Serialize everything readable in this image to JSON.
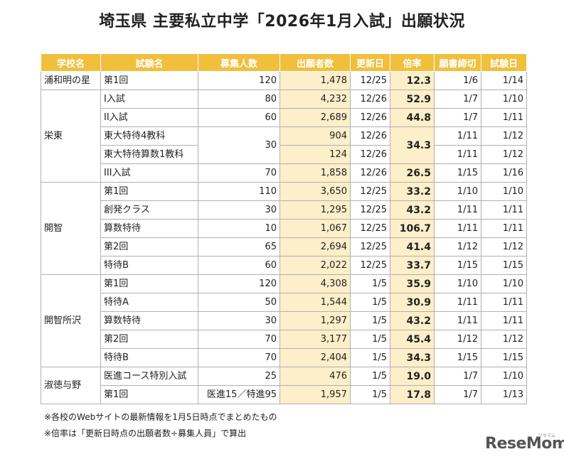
{
  "title": "埼玉県 主要私立中学「2026年1月入試」出願状況",
  "headers": [
    "学校名",
    "試験名",
    "募集人数",
    "出願者数",
    "更新日",
    "倍率",
    "願書締切",
    "試験日"
  ],
  "schools": [
    {
      "name": "浦和明の星",
      "rows": [
        {
          "exam": "第1回",
          "capacity": "120",
          "applicants": "1,478",
          "updated": "12/25",
          "rate": "12.3",
          "deadline": "1/6",
          "exam_date": "1/14"
        }
      ]
    },
    {
      "name": "栄東",
      "rows": [
        {
          "exam": "I入試",
          "capacity": "80",
          "applicants": "4,232",
          "updated": "12/26",
          "rate": "52.9",
          "deadline": "1/7",
          "exam_date": "1/10"
        },
        {
          "exam": "II入試",
          "capacity": "60",
          "applicants": "2,689",
          "updated": "12/26",
          "rate": "44.8",
          "deadline": "1/7",
          "exam_date": "1/11"
        },
        {
          "exam": "東大特待4教科",
          "capacity": "30",
          "applicants": "904",
          "updated": "12/26",
          "rate": "34.3",
          "deadline": "1/11",
          "exam_date": "1/12"
        },
        {
          "exam": "東大特待算数1教科",
          "applicants": "124",
          "updated": "12/26",
          "deadline": "1/11",
          "exam_date": "1/12"
        },
        {
          "exam": "III入試",
          "capacity": "70",
          "applicants": "1,858",
          "updated": "12/26",
          "rate": "26.5",
          "deadline": "1/15",
          "exam_date": "1/16"
        }
      ]
    },
    {
      "name": "開智",
      "rows": [
        {
          "exam": "第1回",
          "capacity": "110",
          "applicants": "3,650",
          "updated": "12/25",
          "rate": "33.2",
          "deadline": "1/10",
          "exam_date": "1/10"
        },
        {
          "exam": "創発クラス",
          "capacity": "30",
          "applicants": "1,295",
          "updated": "12/25",
          "rate": "43.2",
          "deadline": "1/11",
          "exam_date": "1/11"
        },
        {
          "exam": "算数特待",
          "capacity": "10",
          "applicants": "1,067",
          "updated": "12/25",
          "rate": "106.7",
          "deadline": "1/11",
          "exam_date": "1/11"
        },
        {
          "exam": "第2回",
          "capacity": "65",
          "applicants": "2,694",
          "updated": "12/25",
          "rate": "41.4",
          "deadline": "1/12",
          "exam_date": "1/12"
        },
        {
          "exam": "特待B",
          "capacity": "60",
          "applicants": "2,022",
          "updated": "12/25",
          "rate": "33.7",
          "deadline": "1/15",
          "exam_date": "1/15"
        }
      ]
    },
    {
      "name": "開智所沢",
      "rows": [
        {
          "exam": "第1回",
          "capacity": "120",
          "applicants": "4,308",
          "updated": "1/5",
          "rate": "35.9",
          "deadline": "1/10",
          "exam_date": "1/10"
        },
        {
          "exam": "特待A",
          "capacity": "50",
          "applicants": "1,544",
          "updated": "1/5",
          "rate": "30.9",
          "deadline": "1/11",
          "exam_date": "1/11"
        },
        {
          "exam": "算数特待",
          "capacity": "30",
          "applicants": "1,297",
          "updated": "1/5",
          "rate": "43.2",
          "deadline": "1/11",
          "exam_date": "1/11"
        },
        {
          "exam": "第2回",
          "capacity": "70",
          "applicants": "3,177",
          "updated": "1/5",
          "rate": "45.4",
          "deadline": "1/12",
          "exam_date": "1/12"
        },
        {
          "exam": "特待B",
          "capacity": "70",
          "applicants": "2,404",
          "updated": "1/5",
          "rate": "34.3",
          "deadline": "1/15",
          "exam_date": "1/15"
        }
      ]
    },
    {
      "name": "淑徳与野",
      "rows": [
        {
          "exam": "医進コース特別入試",
          "capacity": "25",
          "applicants": "476",
          "updated": "1/5",
          "rate": "19.0",
          "deadline": "1/7",
          "exam_date": "1/10"
        },
        {
          "exam": "第1回",
          "capacity_note": "医進15／特進95",
          "applicants": "1,957",
          "updated": "1/5",
          "rate": "17.8",
          "deadline": "1/7",
          "exam_date": "1/13"
        }
      ]
    }
  ],
  "footnotes": [
    "※各校のWebサイトの最新情報を1月5日時点でまとめたもの",
    "※倍率は「更新日時点の出願者数÷募集人員」で算出"
  ],
  "logo": "ReseMom",
  "logo_sub": "リセマム"
}
